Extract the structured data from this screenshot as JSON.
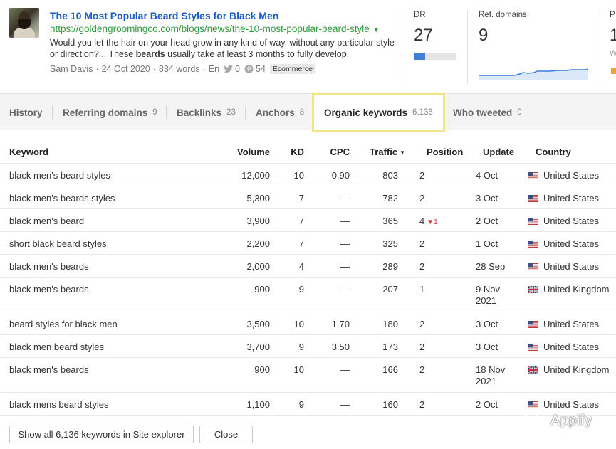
{
  "article": {
    "title": "The 10 Most Popular Beard Styles for Black Men",
    "url": "https://goldengroomingco.com/blogs/news/the-10-most-popular-beard-style",
    "desc_pre": "Would you let the hair on your head grow in any kind of way, without any particular style or direction?... These ",
    "desc_bold": "beards",
    "desc_post": " usually take at least 3 months to fully develop.",
    "author": "Sam Davis",
    "date": "24 Oct 2020",
    "words": "834 words",
    "lang": "En",
    "twitter_count": "0",
    "pinterest_count": "54",
    "category": "Ecommerce"
  },
  "metrics": {
    "dr_label": "DR",
    "dr_value": "27",
    "dr_fraction": 0.27,
    "ref_label": "Ref. domains",
    "ref_value": "9",
    "third_label": "P",
    "third_value": "1",
    "third_sub": "W"
  },
  "tabs": [
    {
      "label": "History",
      "count": ""
    },
    {
      "label": "Referring domains",
      "count": "9"
    },
    {
      "label": "Backlinks",
      "count": "23"
    },
    {
      "label": "Anchors",
      "count": "8"
    },
    {
      "label": "Organic keywords",
      "count": "6,136"
    },
    {
      "label": "Who tweeted",
      "count": "0"
    }
  ],
  "table": {
    "headers": {
      "keyword": "Keyword",
      "volume": "Volume",
      "kd": "KD",
      "cpc": "CPC",
      "traffic": "Traffic",
      "position": "Position",
      "update": "Update",
      "country": "Country"
    },
    "rows": [
      {
        "keyword": "black men's beard styles",
        "volume": "12,000",
        "kd": "10",
        "cpc": "0.90",
        "traffic": "803",
        "position": "2",
        "delta": "",
        "update": "4 Oct",
        "country": "United States"
      },
      {
        "keyword": "black men's beards styles",
        "volume": "5,300",
        "kd": "7",
        "cpc": "—",
        "traffic": "782",
        "position": "2",
        "delta": "",
        "update": "3 Oct",
        "country": "United States"
      },
      {
        "keyword": "black men's beard",
        "volume": "3,900",
        "kd": "7",
        "cpc": "—",
        "traffic": "365",
        "position": "4",
        "delta": "1",
        "update": "2 Oct",
        "country": "United States"
      },
      {
        "keyword": "short black beard styles",
        "volume": "2,200",
        "kd": "7",
        "cpc": "—",
        "traffic": "325",
        "position": "2",
        "delta": "",
        "update": "1 Oct",
        "country": "United States"
      },
      {
        "keyword": "black men's beards",
        "volume": "2,000",
        "kd": "4",
        "cpc": "—",
        "traffic": "289",
        "position": "2",
        "delta": "",
        "update": "28 Sep",
        "country": "United States"
      },
      {
        "keyword": "black men's beards",
        "volume": "900",
        "kd": "9",
        "cpc": "—",
        "traffic": "207",
        "position": "1",
        "delta": "",
        "update": "9 Nov 2021",
        "country": "United Kingdom"
      },
      {
        "keyword": "beard styles for black men",
        "volume": "3,500",
        "kd": "10",
        "cpc": "1.70",
        "traffic": "180",
        "position": "2",
        "delta": "",
        "update": "3 Oct",
        "country": "United States"
      },
      {
        "keyword": "black men beard styles",
        "volume": "3,700",
        "kd": "9",
        "cpc": "3.50",
        "traffic": "173",
        "position": "2",
        "delta": "",
        "update": "3 Oct",
        "country": "United States"
      },
      {
        "keyword": "black men's beards",
        "volume": "900",
        "kd": "10",
        "cpc": "—",
        "traffic": "166",
        "position": "2",
        "delta": "",
        "update": "18 Nov 2021",
        "country": "United Kingdom"
      },
      {
        "keyword": "black mens beard styles",
        "volume": "1,100",
        "kd": "9",
        "cpc": "—",
        "traffic": "160",
        "position": "2",
        "delta": "",
        "update": "2 Oct",
        "country": "United States"
      }
    ]
  },
  "footer": {
    "show_all": "Show all 6,136 keywords in Site explorer",
    "close": "Close"
  },
  "watermark": "Appify",
  "colors": {
    "link": "#1a5cc8",
    "url": "#2f9b3a",
    "active_tab_border": "#f2e585",
    "dr_bar": "#3d7fd6",
    "spark": "#3d7fd6",
    "delta_down": "#d83a3a"
  }
}
